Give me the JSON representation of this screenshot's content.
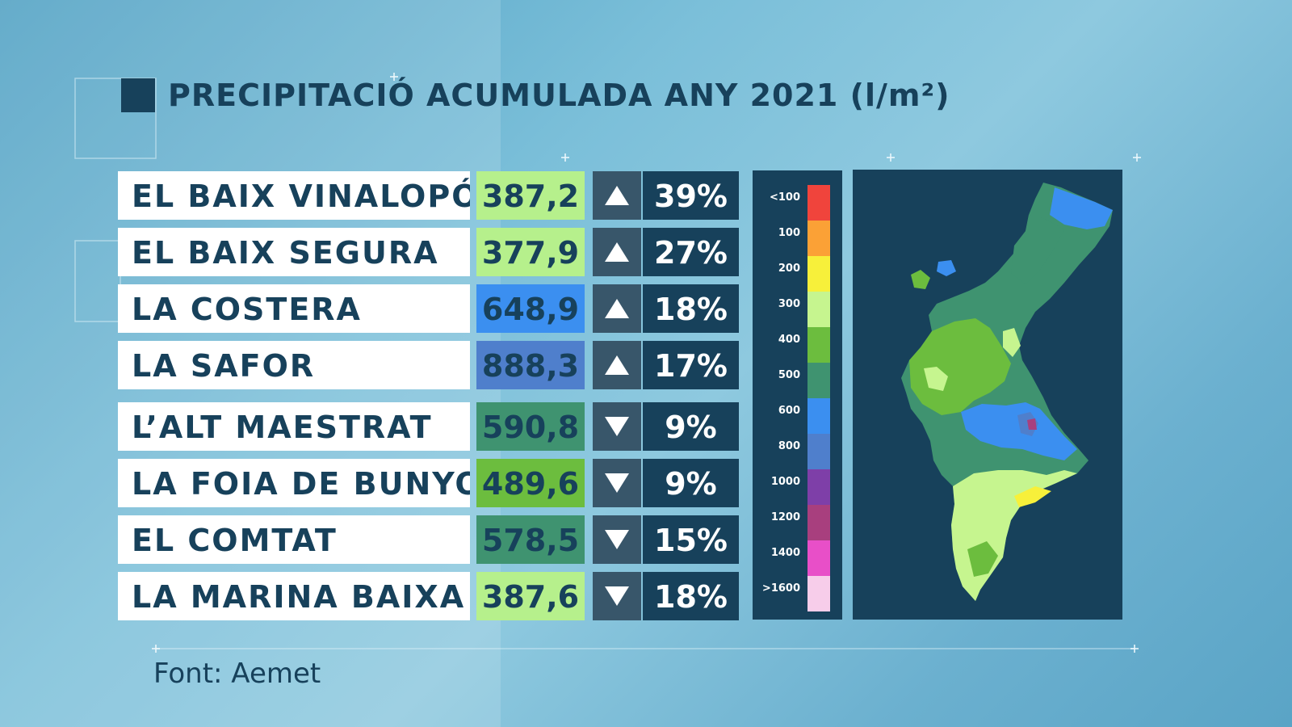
{
  "title": "PRECIPITACIÓ ACUMULADA ANY 2021 (l/m²)",
  "source": "Font: Aemet",
  "rows": [
    {
      "name": "EL BAIX VINALOPÓ",
      "value": "387,2",
      "value_color": "#b6f08c",
      "trend": "up",
      "change": "39%"
    },
    {
      "name": "EL BAIX SEGURA",
      "value": "377,9",
      "value_color": "#b6f08c",
      "trend": "up",
      "change": "27%"
    },
    {
      "name": "LA COSTERA",
      "value": "648,9",
      "value_color": "#3b8ff0",
      "trend": "up",
      "change": "18%"
    },
    {
      "name": "LA SAFOR",
      "value": "888,3",
      "value_color": "#4f7fcc",
      "trend": "up",
      "change": "17%"
    },
    {
      "name": "L’ALT MAESTRAT",
      "value": "590,8",
      "value_color": "#3f9370",
      "trend": "down",
      "change": "9%"
    },
    {
      "name": "LA FOIA DE BUNYOL",
      "value": "489,6",
      "value_color": "#6cbd3e",
      "trend": "down",
      "change": "9%"
    },
    {
      "name": "EL COMTAT",
      "value": "578,5",
      "value_color": "#3f9370",
      "trend": "down",
      "change": "15%"
    },
    {
      "name": "LA MARINA BAIXA",
      "value": "387,6",
      "value_color": "#b6f08c",
      "trend": "down",
      "change": "18%"
    }
  ],
  "legend": [
    {
      "label": "<100",
      "color": "#f0443c"
    },
    {
      "label": "100",
      "color": "#fba136"
    },
    {
      "label": "200",
      "color": "#f7f03a"
    },
    {
      "label": "300",
      "color": "#c6f58f"
    },
    {
      "label": "400",
      "color": "#6cbd3e"
    },
    {
      "label": "500",
      "color": "#3f9370"
    },
    {
      "label": "600",
      "color": "#3b8ff0"
    },
    {
      "label": "800",
      "color": "#4f7fcc"
    },
    {
      "label": "1000",
      "color": "#7e3fa8"
    },
    {
      "label": "1200",
      "color": "#a83f7e"
    },
    {
      "label": ">1600",
      "color": "#f7cdea"
    }
  ],
  "legend_extra": [
    {
      "label": "1400",
      "color": "#e84fc8"
    }
  ],
  "map": {
    "region": "Comunitat Valenciana"
  }
}
